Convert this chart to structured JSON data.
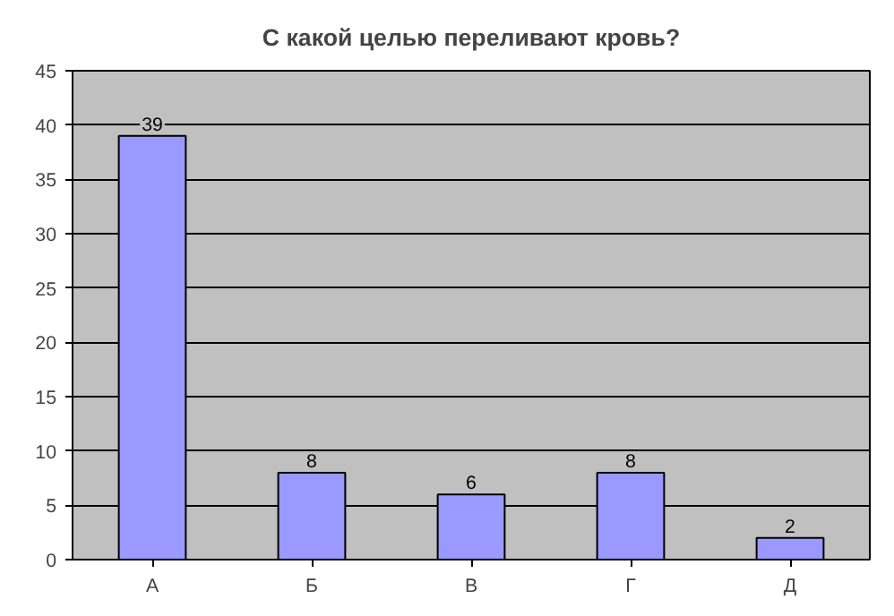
{
  "chart_data": {
    "type": "bar",
    "title": "С какой целью переливают кровь?",
    "categories": [
      "А",
      "Б",
      "В",
      "Г",
      "Д"
    ],
    "values": [
      39,
      8,
      6,
      8,
      2
    ],
    "color": "#9999ff",
    "ylim": [
      0,
      45
    ],
    "yticks": [
      0,
      5,
      10,
      15,
      20,
      25,
      30,
      35,
      40,
      45
    ],
    "grid": "y",
    "data_labels": true
  }
}
